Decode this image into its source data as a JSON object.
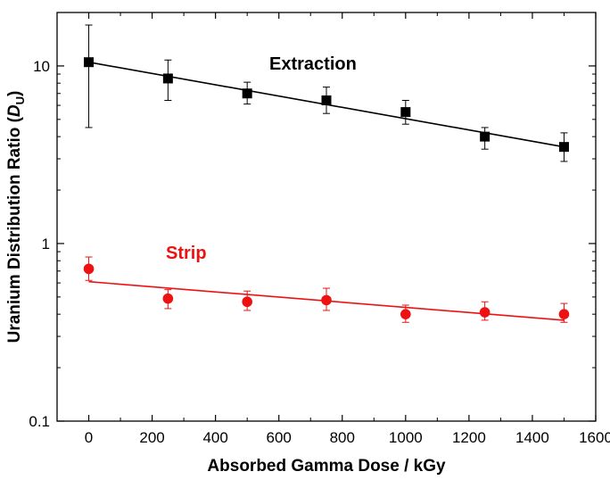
{
  "chart_data": {
    "type": "scatter",
    "title": "",
    "xlabel": "Absorbed Gamma Dose / kGy",
    "ylabel_main": "Uranium Distribution Ratio (",
    "ylabel_symbol": "D",
    "ylabel_sub": "U",
    "ylabel_close": ")",
    "xlim": [
      -100,
      1600
    ],
    "ylim": [
      0.1,
      20
    ],
    "yscale": "log",
    "grid": false,
    "x_ticks": [
      0,
      200,
      400,
      600,
      800,
      1000,
      1200,
      1400,
      1600
    ],
    "x_tick_labels": [
      "0",
      "200",
      "400",
      "600",
      "800",
      "1000",
      "1200",
      "1400",
      "1600"
    ],
    "y_ticks": [
      0.1,
      1,
      10
    ],
    "y_tick_labels": [
      "0.1",
      "1",
      "10"
    ],
    "series": [
      {
        "name": "Extraction",
        "color": "#000000",
        "marker": "square",
        "x": [
          0,
          250,
          500,
          750,
          1000,
          1250,
          1500
        ],
        "y": [
          10.5,
          8.5,
          7.0,
          6.4,
          5.5,
          4.0,
          3.5
        ],
        "err_low": [
          4.5,
          6.4,
          6.1,
          5.4,
          4.7,
          3.4,
          2.9
        ],
        "err_high": [
          17.0,
          10.8,
          8.1,
          7.6,
          6.4,
          4.5,
          4.2
        ],
        "fit": {
          "x": [
            0,
            1500
          ],
          "y": [
            10.5,
            3.5
          ]
        }
      },
      {
        "name": "Strip",
        "color": "#ee1111",
        "marker": "circle",
        "x": [
          0,
          250,
          500,
          750,
          1000,
          1250,
          1500
        ],
        "y": [
          0.72,
          0.49,
          0.47,
          0.48,
          0.4,
          0.41,
          0.4
        ],
        "err_low": [
          0.62,
          0.43,
          0.42,
          0.42,
          0.36,
          0.37,
          0.36
        ],
        "err_high": [
          0.84,
          0.55,
          0.54,
          0.56,
          0.45,
          0.47,
          0.46
        ],
        "fit": {
          "x": [
            0,
            1500
          ],
          "y": [
            0.61,
            0.37
          ]
        }
      }
    ]
  }
}
